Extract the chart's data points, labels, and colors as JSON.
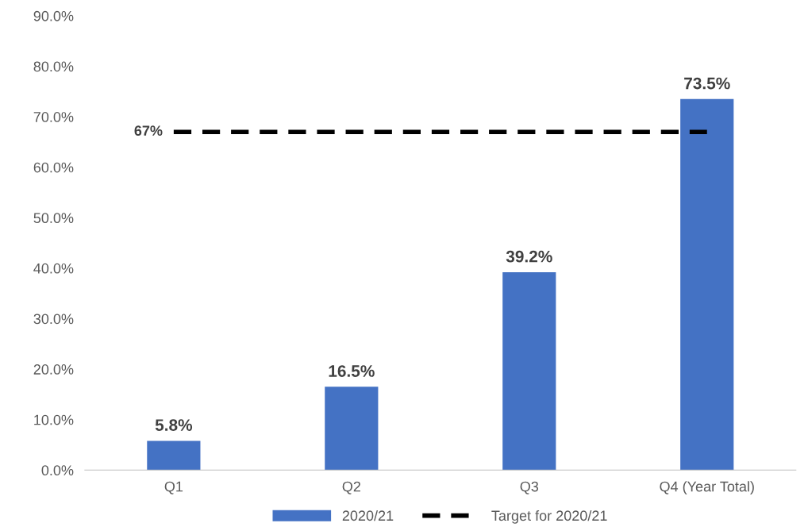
{
  "chart_data": {
    "type": "bar",
    "categories": [
      "Q1",
      "Q2",
      "Q3",
      "Q4 (Year Total)"
    ],
    "series": [
      {
        "name": "2020/21",
        "color": "#4472c4",
        "values": [
          5.8,
          16.5,
          39.2,
          73.5
        ],
        "value_labels": [
          "5.8%",
          "16.5%",
          "39.2%",
          "73.5%"
        ]
      },
      {
        "name": "Target for 2020/21",
        "type": "line",
        "color": "#000000",
        "line_style": "dashed",
        "values": [
          67,
          67,
          67,
          67
        ],
        "value_labels": [
          "67%",
          null,
          null,
          null
        ]
      }
    ],
    "ylim": [
      0,
      90
    ],
    "yticks": [
      {
        "value": 0,
        "label": "0.0%"
      },
      {
        "value": 10,
        "label": "10.0%"
      },
      {
        "value": 20,
        "label": "20.0%"
      },
      {
        "value": 30,
        "label": "30.0%"
      },
      {
        "value": 40,
        "label": "40.0%"
      },
      {
        "value": 50,
        "label": "50.0%"
      },
      {
        "value": 60,
        "label": "60.0%"
      },
      {
        "value": 70,
        "label": "70.0%"
      },
      {
        "value": 80,
        "label": "80.0%"
      },
      {
        "value": 90,
        "label": "90.0%"
      }
    ],
    "grid": false,
    "legend": "bottom"
  }
}
